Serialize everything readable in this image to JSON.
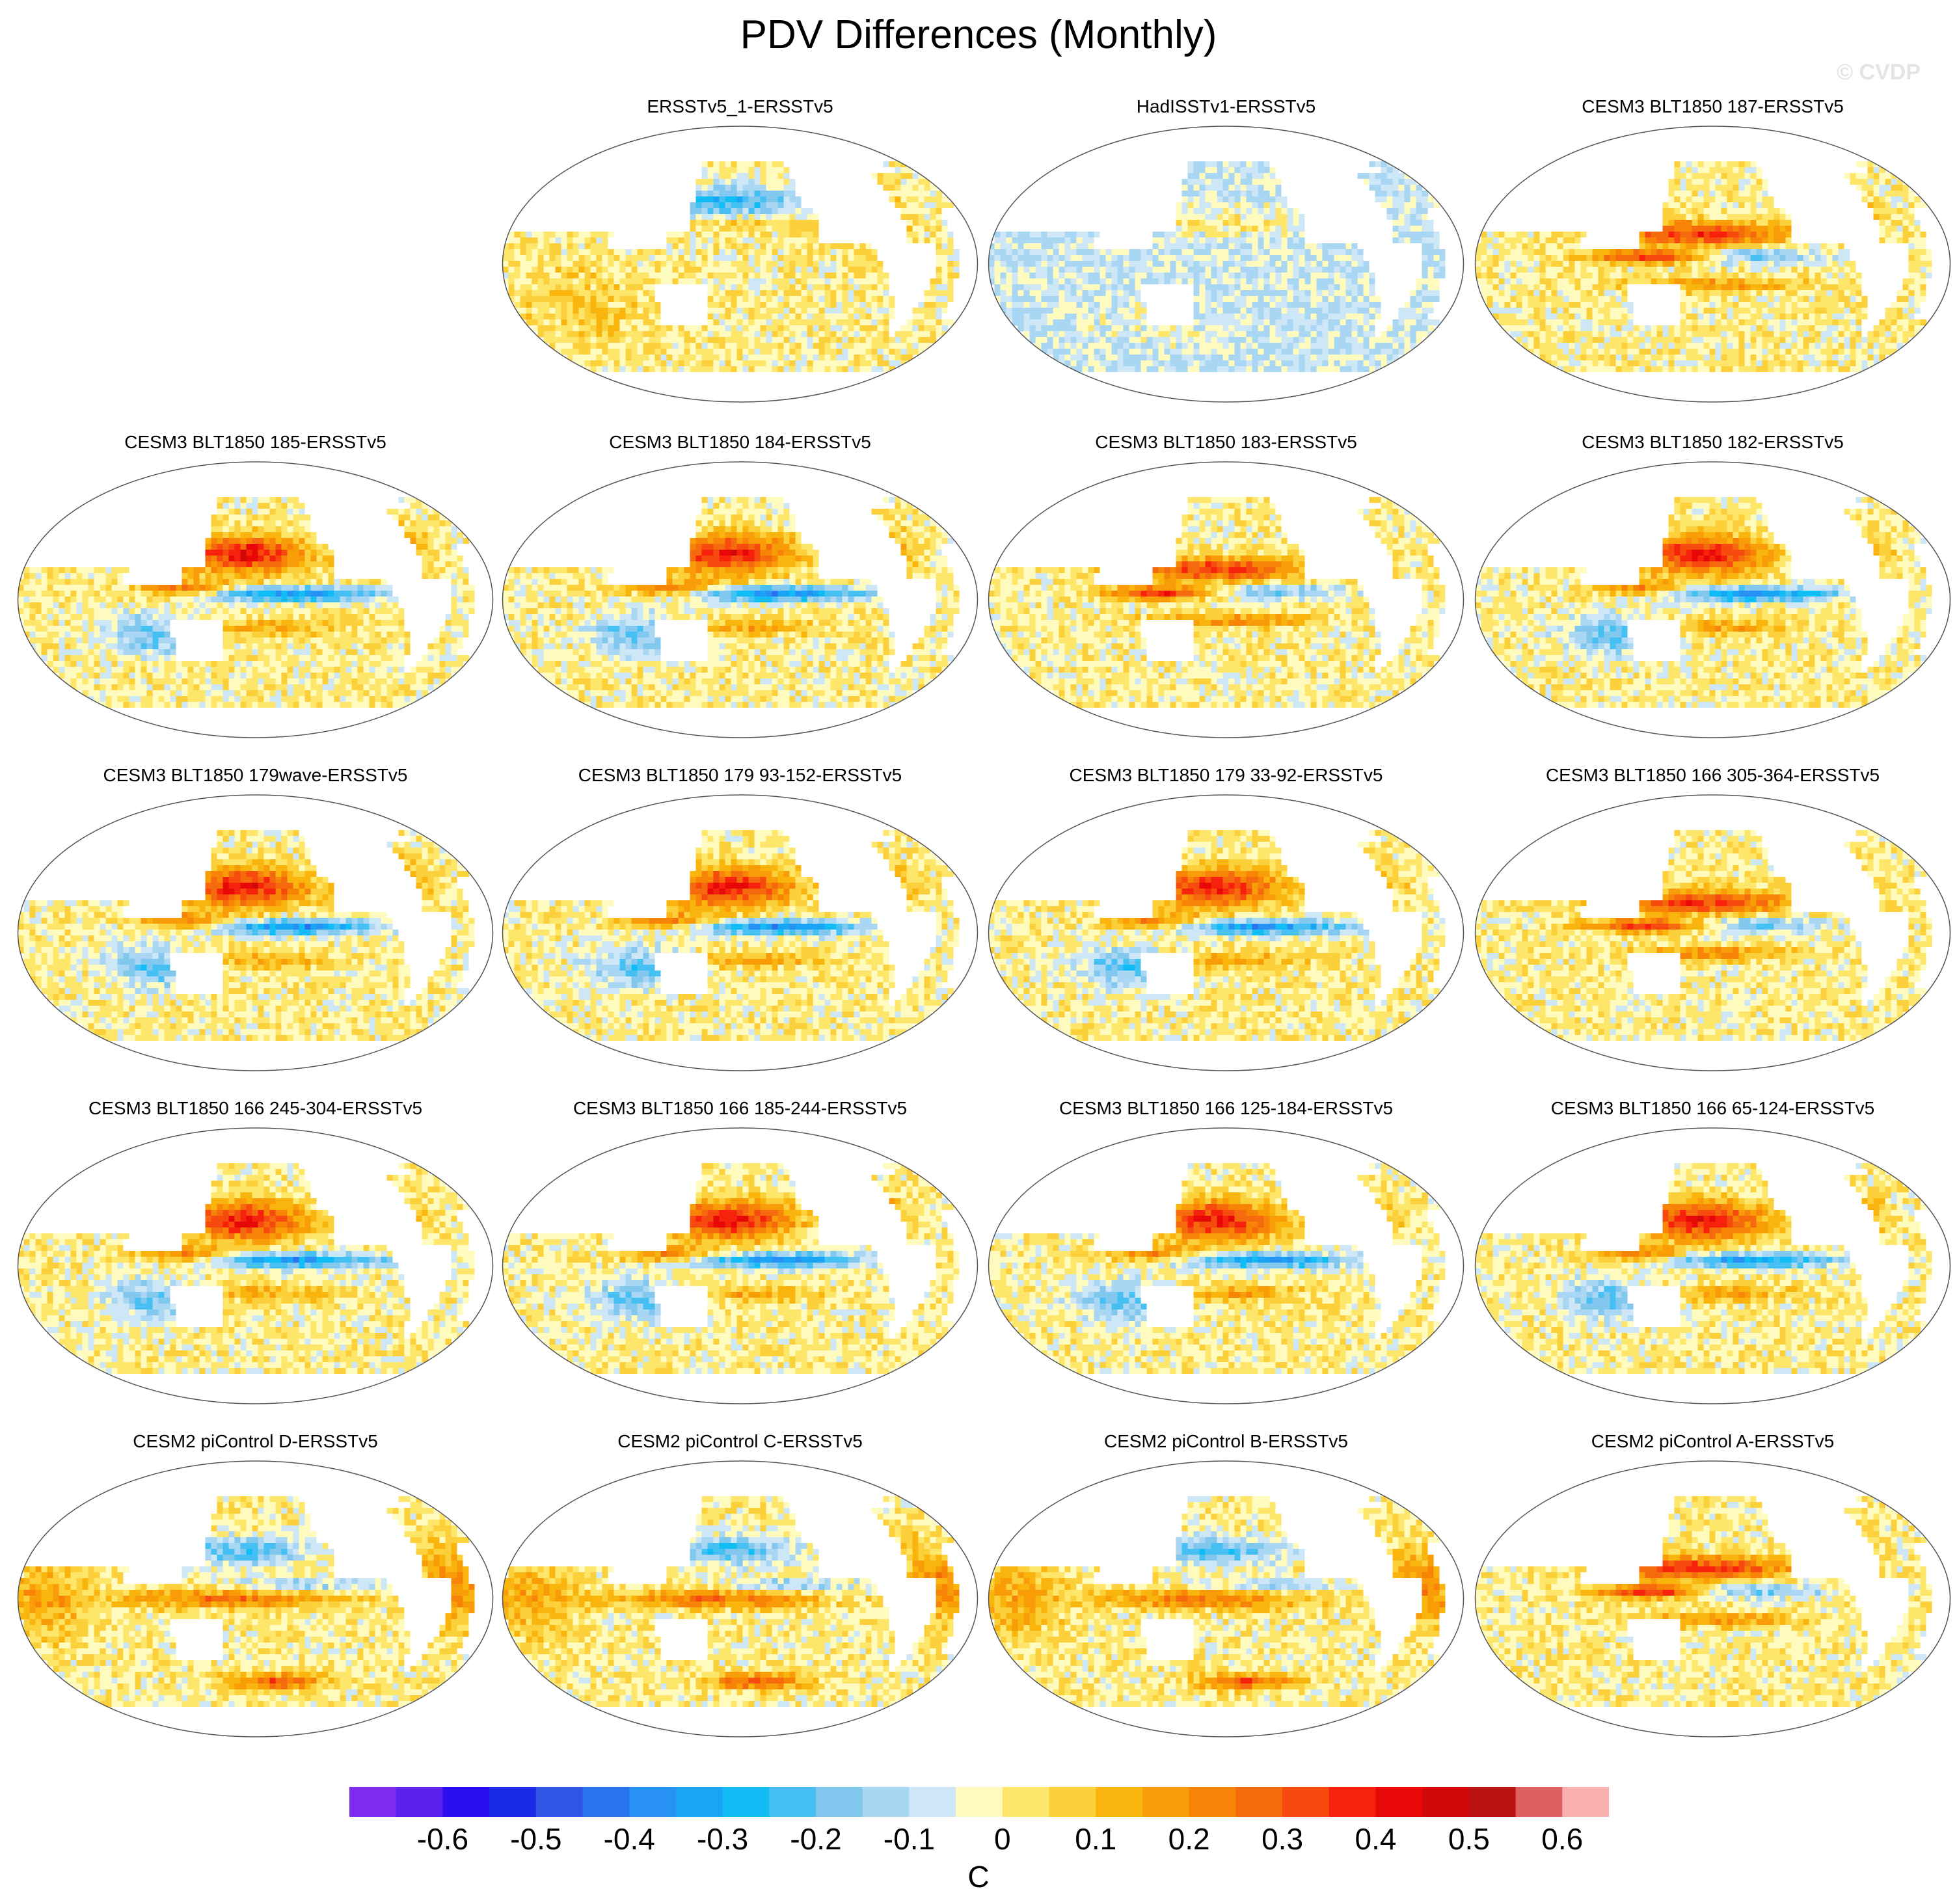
{
  "title": "PDV Differences (Monthly)",
  "credit": "© CVDP",
  "panels": [
    {
      "label": "ERSSTv5_1-ERSSTv5",
      "row": 0,
      "col": 1,
      "regime": 0,
      "seed": 3
    },
    {
      "label": "HadISSTv1-ERSSTv5",
      "row": 0,
      "col": 2,
      "regime": 1,
      "seed": 7
    },
    {
      "label": "CESM3 BLT1850 187-ERSSTv5",
      "row": 0,
      "col": 3,
      "regime": 2,
      "seed": 11
    },
    {
      "label": "CESM3 BLT1850 185-ERSSTv5",
      "row": 1,
      "col": 0,
      "regime": 3,
      "seed": 13
    },
    {
      "label": "CESM3 BLT1850 184-ERSSTv5",
      "row": 1,
      "col": 1,
      "regime": 3,
      "seed": 17
    },
    {
      "label": "CESM3 BLT1850 183-ERSSTv5",
      "row": 1,
      "col": 2,
      "regime": 2,
      "seed": 19
    },
    {
      "label": "CESM3 BLT1850 182-ERSSTv5",
      "row": 1,
      "col": 3,
      "regime": 3,
      "seed": 23
    },
    {
      "label": "CESM3 BLT1850 179wave-ERSSTv5",
      "row": 2,
      "col": 0,
      "regime": 3,
      "seed": 29
    },
    {
      "label": "CESM3 BLT1850 179 93-152-ERSSTv5",
      "row": 2,
      "col": 1,
      "regime": 3,
      "seed": 31
    },
    {
      "label": "CESM3 BLT1850 179 33-92-ERSSTv5",
      "row": 2,
      "col": 2,
      "regime": 3,
      "seed": 37
    },
    {
      "label": "CESM3 BLT1850 166 305-364-ERSSTv5",
      "row": 2,
      "col": 3,
      "regime": 2,
      "seed": 41
    },
    {
      "label": "CESM3 BLT1850 166 245-304-ERSSTv5",
      "row": 3,
      "col": 0,
      "regime": 3,
      "seed": 43
    },
    {
      "label": "CESM3 BLT1850 166 185-244-ERSSTv5",
      "row": 3,
      "col": 1,
      "regime": 3,
      "seed": 47
    },
    {
      "label": "CESM3 BLT1850 166 125-184-ERSSTv5",
      "row": 3,
      "col": 2,
      "regime": 3,
      "seed": 53
    },
    {
      "label": "CESM3 BLT1850 166 65-124-ERSSTv5",
      "row": 3,
      "col": 3,
      "regime": 3,
      "seed": 59
    },
    {
      "label": "CESM2 piControl D-ERSSTv5",
      "row": 4,
      "col": 0,
      "regime": 4,
      "seed": 61
    },
    {
      "label": "CESM2 piControl C-ERSSTv5",
      "row": 4,
      "col": 1,
      "regime": 4,
      "seed": 67
    },
    {
      "label": "CESM2 piControl B-ERSSTv5",
      "row": 4,
      "col": 2,
      "regime": 4,
      "seed": 71
    },
    {
      "label": "CESM2 piControl A-ERSSTv5",
      "row": 4,
      "col": 3,
      "regime": 2,
      "seed": 73
    }
  ],
  "colorbar": {
    "colors": [
      "#7d2cf0",
      "#5a22ec",
      "#2b0ff0",
      "#1a2ae6",
      "#2f55e6",
      "#2b73ee",
      "#2792f4",
      "#1aa4f4",
      "#12bdf6",
      "#46c0f2",
      "#82c7ee",
      "#a9d6f2",
      "#cde7f6",
      "#fffbbe",
      "#fde66a",
      "#fbd03a",
      "#f9b50e",
      "#f89c08",
      "#f78307",
      "#f56a0c",
      "#f64a0e",
      "#f6220c",
      "#e80808",
      "#d10808",
      "#b91010",
      "#e06060",
      "#f9b0b0"
    ],
    "tick_labels": [
      "-0.6",
      "-0.5",
      "-0.4",
      "-0.3",
      "-0.2",
      "-0.1",
      "0",
      "0.1",
      "0.2",
      "0.3",
      "0.4",
      "0.5",
      "0.6"
    ],
    "tick_values": [
      -0.6,
      -0.5,
      -0.4,
      -0.3,
      -0.2,
      -0.1,
      0,
      0.1,
      0.2,
      0.3,
      0.4,
      0.5,
      0.6
    ],
    "units": "C"
  }
}
